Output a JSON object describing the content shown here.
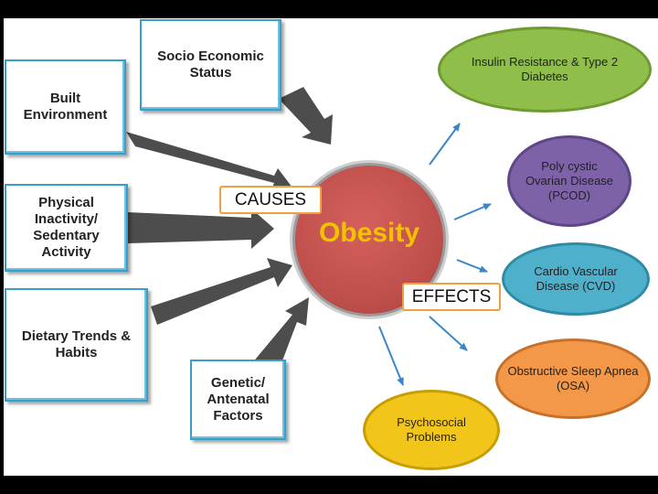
{
  "causes": {
    "socio_economic": "Socio Economic Status",
    "built_environment": "Built Environment",
    "physical_inactivity": "Physical Inactivity/ Sedentary Activity",
    "dietary": "Dietary Trends & Habits",
    "genetic": "Genetic/ Antenatal Factors"
  },
  "center": {
    "label": "Obesity",
    "causes_tag": "CAUSES",
    "effects_tag": "EFFECTS"
  },
  "effects": {
    "insulin": "Insulin Resistance & Type 2 Diabetes",
    "pcod": "Poly cystic Ovarian Disease (PCOD)",
    "cvd": "Cardio Vascular Disease (CVD)",
    "osa": "Obstructive Sleep Apnea (OSA)",
    "psychosocial": "Psychosocial Problems"
  },
  "colors": {
    "center": "#c0504d",
    "center_text": "#f2c200",
    "box_border": "#3a9fc8",
    "tag_border": "#f0a040",
    "arrow_gray": "#4d4d4d",
    "effect_arrow": "#3d86c6",
    "insulin": "#8fbe4a",
    "pcod": "#7e62a8",
    "cvd": "#4fb0cb",
    "osa": "#f29848",
    "psychosocial": "#f2c51a"
  }
}
